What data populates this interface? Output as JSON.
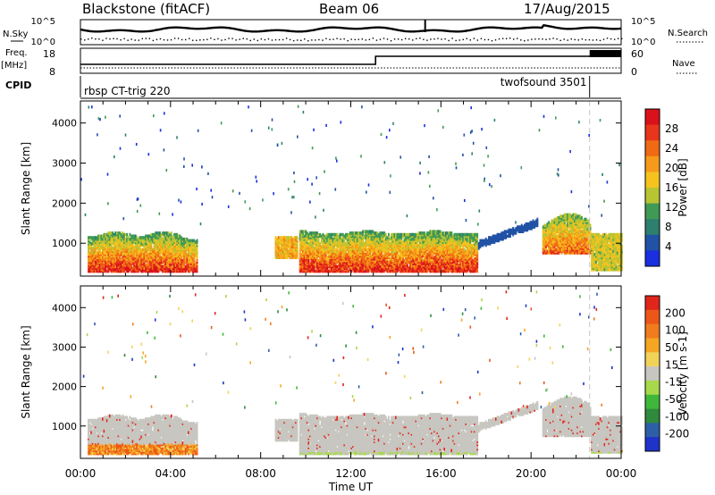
{
  "header": {
    "station": "Blackstone (fitACF)",
    "beam": "Beam 06",
    "date": "17/Aug/2015"
  },
  "status_panel": {
    "nsky_label": "N.Sky",
    "nsearch_label": "N.Search",
    "noise_ticks": [
      "10^5",
      "10^0"
    ],
    "freq_label": "Freq.",
    "freq_unit": "[MHz]",
    "freq_ticks": [
      "18",
      "8"
    ],
    "nave_label": "Nave",
    "nave_ticks": [
      "60",
      "0"
    ],
    "cpid_label": "CPID",
    "programs": [
      {
        "name": "rbsp CT-trig 220",
        "start_hour": 0
      },
      {
        "name": "twofsound 3501",
        "start_hour": 22.6
      }
    ]
  },
  "chart_data": [
    {
      "type": "heatmap",
      "title": "",
      "parameter": "Power",
      "ylabel": "Slant Range [km]",
      "xlim_hours": [
        0,
        24
      ],
      "ylim_km": [
        180,
        4550
      ],
      "y_ticks": [
        1000,
        2000,
        3000,
        4000
      ],
      "colorbar": {
        "label": "Power [dB]",
        "ticks": [
          4,
          8,
          12,
          16,
          20,
          24,
          28
        ],
        "colors": [
          "#1a2fe0",
          "#2152a5",
          "#2d7f6e",
          "#3f9a55",
          "#b8c432",
          "#f5c21e",
          "#f59a1a",
          "#f06a14",
          "#e8361c",
          "#d9111b"
        ]
      },
      "echo_regions": [
        {
          "label": "near-range band",
          "start_hour": 0.3,
          "end_hour": 5.2,
          "range_km": [
            250,
            1200
          ],
          "peak_db": 28
        },
        {
          "label": "main band",
          "start_hour": 9.7,
          "end_hour": 17.6,
          "range_km": [
            250,
            1200
          ],
          "peak_db": 28
        },
        {
          "label": "rising arc",
          "start_hour": 17.5,
          "end_hour": 20.2,
          "range_km": [
            1000,
            1500
          ],
          "peak_db": 12
        },
        {
          "label": "late band",
          "start_hour": 20.5,
          "end_hour": 24,
          "range_km": [
            400,
            1700
          ],
          "peak_db": 24
        }
      ]
    },
    {
      "type": "heatmap",
      "title": "",
      "parameter": "Velocity",
      "xlabel": "Time UT",
      "ylabel": "Slant Range [km]",
      "xlim_hours": [
        0,
        24
      ],
      "ylim_km": [
        180,
        4550
      ],
      "x_ticks": [
        "00:00",
        "04:00",
        "08:00",
        "12:00",
        "16:00",
        "20:00",
        "00:00"
      ],
      "y_ticks": [
        1000,
        2000,
        3000,
        4000
      ],
      "colorbar": {
        "label": "Velocity [m s-1]",
        "ticks": [
          "200",
          "100",
          "50",
          "15",
          "-15",
          "-50",
          "-100",
          "-200"
        ],
        "colors": [
          "#1f33c8",
          "#2d5fa8",
          "#2f8a3c",
          "#3fb83a",
          "#a8d94a",
          "#c8c6c0",
          "#f2d35a",
          "#f5a623",
          "#f07c1e",
          "#ec5618",
          "#e0261a"
        ]
      },
      "ground_scatter_color": "#c8c6c0"
    }
  ]
}
